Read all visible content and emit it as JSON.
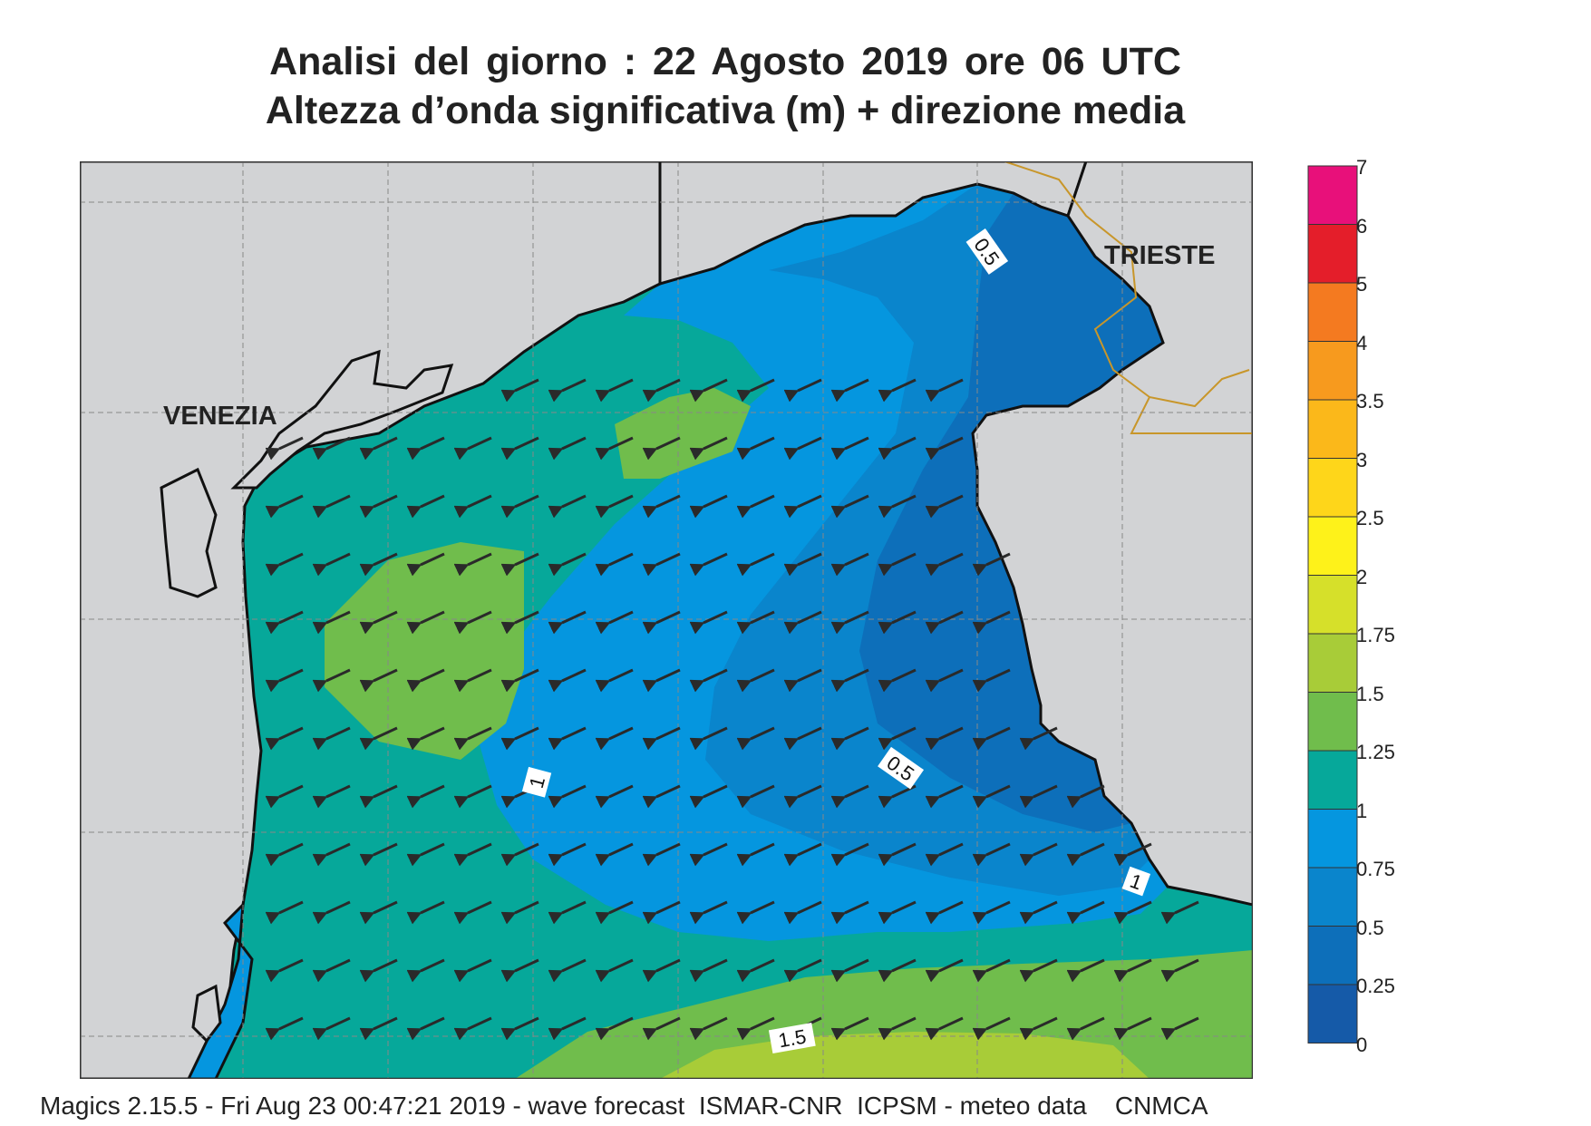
{
  "title": {
    "line1": "Analisi del giorno :  22   Agosto  2019   ore 06 UTC",
    "line2": "Altezza d’onda significativa (m) + direzione media"
  },
  "map": {
    "cities": [
      {
        "name": "VENEZIA"
      },
      {
        "name": "TRIESTE"
      }
    ],
    "contour_labels": [
      "0.5",
      "0.5",
      "1",
      "1",
      "1.5"
    ],
    "land_color": "#d2d3d5",
    "coast_color": "#111111",
    "border_color": "#c8962a"
  },
  "legend": {
    "ticks": [
      "7",
      "6",
      "5",
      "4",
      "3.5",
      "3",
      "2.5",
      "2",
      "1.75",
      "1.5",
      "1.25",
      "1",
      "0.75",
      "0.5",
      "0.25",
      "0"
    ],
    "colors": [
      "#e8107a",
      "#e41e2a",
      "#f47a20",
      "#f79a1e",
      "#fbb81a",
      "#fed61a",
      "#fef21a",
      "#d6e02a",
      "#a8cc38",
      "#70bd4c",
      "#06a89a",
      "#0596df",
      "#0a85cc",
      "#0d6fba",
      "#155aa8"
    ]
  },
  "footer": "Magics 2.15.5 - Fri Aug 23 00:47:21 2019 - wave forecast  ISMAR-CNR  ICPSM - meteo data    CNMCA"
}
